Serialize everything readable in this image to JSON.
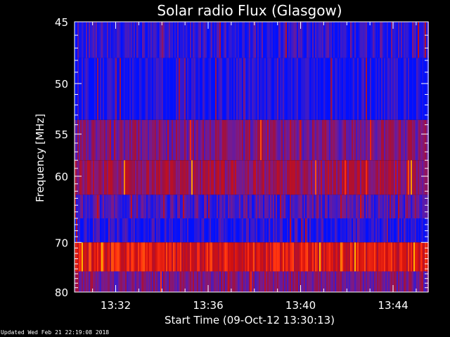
{
  "chart_data": {
    "type": "heatmap",
    "title": "Solar radio Flux (Glasgow)",
    "xlabel": "Start Time (09-Oct-12 13:30:13)",
    "ylabel": "Frequency [MHz]",
    "x_range_minutes": [
      "13:30:13",
      "13:45:30"
    ],
    "x_ticks": [
      "13:32",
      "13:36",
      "13:40",
      "13:44"
    ],
    "x_tick_minutes": [
      1.78,
      5.78,
      9.78,
      13.78
    ],
    "x_max_minutes": 15.3,
    "ylim": [
      45,
      80
    ],
    "y_scale": "reciprocal",
    "y_ticks": [
      45,
      50,
      55,
      60,
      70,
      80
    ],
    "y_minor_ticks": [
      46,
      47,
      48,
      49,
      51,
      52,
      53,
      54,
      56,
      57,
      58,
      59,
      61,
      62,
      63,
      64,
      65,
      66,
      67,
      68,
      69,
      71,
      72,
      73,
      74,
      75,
      76,
      77,
      78,
      79
    ],
    "bands": [
      {
        "from_mhz": 45.0,
        "to_mhz": 47.8,
        "level": 0.12
      },
      {
        "from_mhz": 47.8,
        "to_mhz": 53.5,
        "level": 0.05
      },
      {
        "from_mhz": 53.5,
        "to_mhz": 58.0,
        "level": 0.35
      },
      {
        "from_mhz": 58.0,
        "to_mhz": 62.5,
        "level": 0.45
      },
      {
        "from_mhz": 62.5,
        "to_mhz": 66.0,
        "level": 0.2
      },
      {
        "from_mhz": 66.0,
        "to_mhz": 70.0,
        "level": 0.1
      },
      {
        "from_mhz": 70.0,
        "to_mhz": 75.5,
        "level": 0.7
      },
      {
        "from_mhz": 75.5,
        "to_mhz": 80.0,
        "level": 0.35
      }
    ],
    "colorscale": [
      "#0010ff",
      "#3a1acc",
      "#7a1a8a",
      "#a01040",
      "#d01010",
      "#ff3010",
      "#ffb000"
    ],
    "frame_color": "#ffffff"
  },
  "footer": {
    "updated": "Updated Wed Feb 21 22:19:08 2018"
  }
}
